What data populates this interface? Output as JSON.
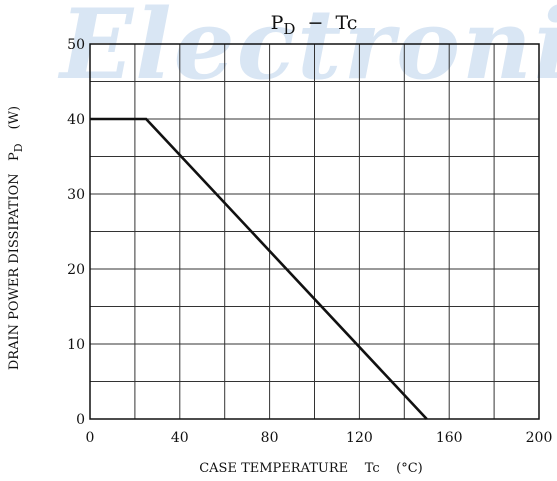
{
  "watermark": "Electronic",
  "chart_data": {
    "type": "line",
    "title_main": "P",
    "title_sub": "D",
    "title_rest": "  −  Tc",
    "xlabel": "CASE TEMPERATURE    Tc    (°C)",
    "ylabel_main": "DRAIN POWER DISSIPATION   P",
    "ylabel_sub": "D",
    "ylabel_unit": "(W)",
    "xlim": [
      0,
      200
    ],
    "ylim": [
      0,
      50
    ],
    "xticks": [
      0,
      40,
      80,
      120,
      160,
      200
    ],
    "yticks": [
      0,
      10,
      20,
      30,
      40,
      50
    ],
    "x_grid_step": 20,
    "y_grid_step": 5,
    "grid": true,
    "series": [
      {
        "x": [
          0,
          25,
          150
        ],
        "y": [
          40,
          40,
          0
        ]
      }
    ]
  }
}
